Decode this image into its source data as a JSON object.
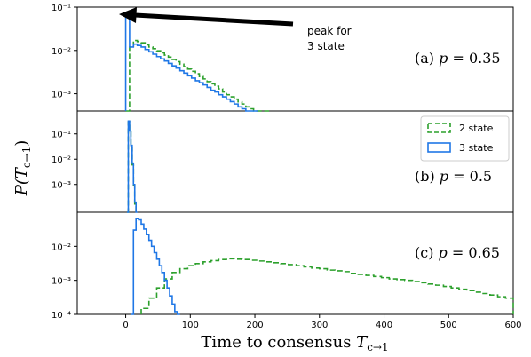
{
  "chart_data": {
    "type": "histogram",
    "xlabel": "Time to consensus T_{c→1}",
    "xlabel_parts": {
      "main": "Time to consensus ",
      "var": "T",
      "sub": "c→1"
    },
    "ylabel": "P(T_{c→1})",
    "ylabel_parts": {
      "pre": "P(",
      "var": "T",
      "sub": "c→1",
      "post": ")"
    },
    "xlim": [
      -75,
      600
    ],
    "x_ticks": [
      0,
      100,
      200,
      300,
      400,
      500,
      600
    ],
    "y_scale": "log",
    "legend": {
      "placement": "inside panel (b), top-right",
      "entries": [
        {
          "label": "2 state",
          "color": "#2ca02c",
          "style": "dashed"
        },
        {
          "label": "3 state",
          "color": "#1f77e6",
          "style": "solid"
        }
      ]
    },
    "annotation": {
      "text_lines": [
        "peak for",
        "3 state"
      ],
      "panel": 0,
      "arrow_to": [
        10,
        0.062
      ]
    },
    "panels": [
      {
        "label": "(a) p = 0.35",
        "label_parts": {
          "prefix": "(a) ",
          "var": "p",
          "value": " = 0.35"
        },
        "ylim": [
          0.0004,
          0.1
        ],
        "yticks": [
          {
            "value": 0.1,
            "label": "10⁻¹"
          },
          {
            "value": 0.01,
            "label": "10⁻²"
          },
          {
            "value": 0.001,
            "label": "10⁻³"
          }
        ],
        "series": [
          {
            "name": "2 state",
            "bin_width": 6,
            "x": [
              0,
              6,
              12,
              18,
              24,
              30,
              36,
              42,
              48,
              54,
              60,
              66,
              72,
              78,
              84,
              90,
              96,
              102,
              108,
              114,
              120,
              126,
              132,
              138,
              144,
              150,
              156,
              162,
              168,
              174,
              180,
              186,
              192,
              198,
              204,
              210,
              216
            ],
            "y": [
              0.0004,
              0.012,
              0.017,
              0.016,
              0.015,
              0.0135,
              0.012,
              0.011,
              0.0098,
              0.0088,
              0.0078,
              0.007,
              0.0062,
              0.0055,
              0.0048,
              0.0042,
              0.0037,
              0.0033,
              0.0029,
              0.0025,
              0.0022,
              0.0019,
              0.0017,
              0.0015,
              0.0013,
              0.0011,
              0.00095,
              0.00085,
              0.00075,
              0.00065,
              0.00058,
              0.0005,
              0.00045,
              0.0004,
              0.0004,
              0.0004,
              0.0004
            ]
          },
          {
            "name": "3 state",
            "bin_width": 6,
            "x": [
              0,
              6,
              12,
              18,
              24,
              30,
              36,
              42,
              48,
              54,
              60,
              66,
              72,
              78,
              84,
              90,
              96,
              102,
              108,
              114,
              120,
              126,
              132,
              138,
              144,
              150,
              156,
              162,
              168,
              174,
              180,
              186,
              192,
              198
            ],
            "y": [
              0.062,
              0.012,
              0.014,
              0.013,
              0.012,
              0.0105,
              0.0093,
              0.0082,
              0.0072,
              0.0064,
              0.0057,
              0.005,
              0.0044,
              0.0039,
              0.0034,
              0.003,
              0.0026,
              0.0023,
              0.002,
              0.0018,
              0.0016,
              0.0014,
              0.0012,
              0.0011,
              0.00095,
              0.00085,
              0.00075,
              0.00066,
              0.00058,
              0.0005,
              0.00045,
              0.0004,
              0.0004,
              0.0004
            ]
          }
        ]
      },
      {
        "label": "(b) p = 0.5",
        "label_parts": {
          "prefix": "(b) ",
          "var": "p",
          "value": " = 0.5"
        },
        "ylim": [
          8e-05,
          0.8
        ],
        "yticks": [
          {
            "value": 0.1,
            "label": "10⁻¹"
          },
          {
            "value": 0.01,
            "label": "10⁻²"
          },
          {
            "value": 0.001,
            "label": "10⁻³"
          }
        ],
        "series": [
          {
            "name": "2 state",
            "bin_width": 2,
            "x": [
              2,
              4,
              6,
              8,
              10,
              12,
              14,
              16
            ],
            "y": [
              8e-05,
              0.3,
              0.12,
              0.03,
              0.006,
              0.0009,
              0.00015,
              8e-05
            ]
          },
          {
            "name": "3 state",
            "bin_width": 2,
            "x": [
              2,
              4,
              6,
              8,
              10,
              12,
              14,
              16
            ],
            "y": [
              8e-05,
              0.32,
              0.13,
              0.035,
              0.007,
              0.001,
              0.0002,
              8e-05
            ]
          }
        ]
      },
      {
        "label": "(c) p = 0.65",
        "label_parts": {
          "prefix": "(c) ",
          "var": "p",
          "value": " = 0.65"
        },
        "ylim": [
          0.0001,
          0.1
        ],
        "yticks": [
          {
            "value": 0.01,
            "label": "10⁻²"
          },
          {
            "value": 0.001,
            "label": "10⁻³"
          },
          {
            "value": 0.0001,
            "label": "10⁻⁴"
          }
        ],
        "series": [
          {
            "name": "2 state",
            "bin_width": 12,
            "x": [
              24,
              36,
              48,
              60,
              72,
              84,
              96,
              108,
              120,
              132,
              144,
              156,
              168,
              180,
              192,
              204,
              216,
              228,
              240,
              252,
              264,
              276,
              288,
              300,
              312,
              324,
              336,
              348,
              360,
              372,
              384,
              396,
              408,
              420,
              432,
              444,
              456,
              468,
              480,
              492,
              504,
              516,
              528,
              540,
              552,
              564,
              576,
              588
            ],
            "y": [
              0.00015,
              0.0003,
              0.0006,
              0.0011,
              0.0017,
              0.0022,
              0.0027,
              0.0031,
              0.0035,
              0.0038,
              0.0041,
              0.0043,
              0.0042,
              0.0041,
              0.0039,
              0.0037,
              0.0035,
              0.0033,
              0.0031,
              0.0029,
              0.0027,
              0.0025,
              0.0023,
              0.0022,
              0.002,
              0.0019,
              0.0018,
              0.0016,
              0.0015,
              0.0014,
              0.0013,
              0.0012,
              0.0011,
              0.00105,
              0.001,
              0.00092,
              0.00085,
              0.00078,
              0.00072,
              0.00066,
              0.0006,
              0.00055,
              0.0005,
              0.00045,
              0.00041,
              0.00037,
              0.00033,
              0.0003
            ]
          },
          {
            "name": "3 state",
            "bin_width": 4,
            "x": [
              8,
              12,
              16,
              20,
              24,
              28,
              32,
              36,
              40,
              44,
              48,
              52,
              56,
              60,
              64,
              68,
              72,
              76,
              80
            ],
            "y": [
              0.0001,
              0.03,
              0.065,
              0.06,
              0.045,
              0.032,
              0.022,
              0.015,
              0.01,
              0.0065,
              0.0042,
              0.0027,
              0.0017,
              0.001,
              0.0006,
              0.00035,
              0.0002,
              0.00012,
              0.0001
            ]
          }
        ]
      }
    ]
  },
  "colors": {
    "two_state": "#2ca02c",
    "three_state": "#1f77e6",
    "axis": "#000000"
  }
}
